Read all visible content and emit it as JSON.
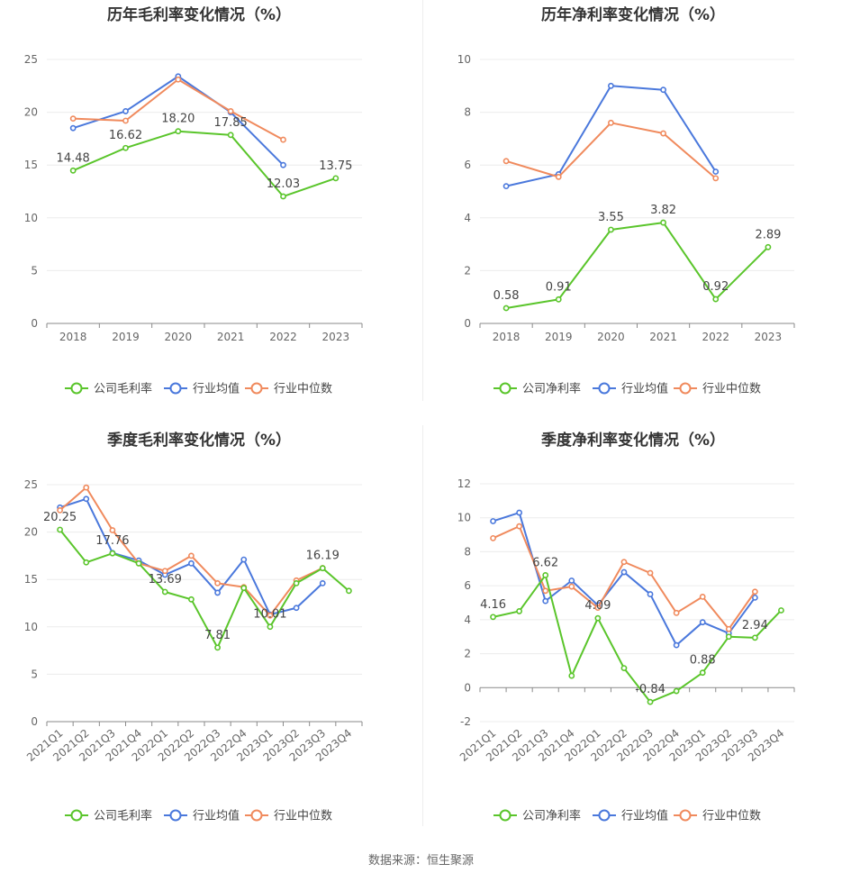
{
  "source_label": "数据来源：恒生聚源",
  "chart_data": [
    {
      "type": "line",
      "title": "历年毛利率变化情况（%）",
      "categories": [
        "2018",
        "2019",
        "2020",
        "2021",
        "2022",
        "2023"
      ],
      "ylim": [
        0,
        25
      ],
      "yticks": [
        0,
        5,
        10,
        15,
        20,
        25
      ],
      "grid": true,
      "legend_position": "bottom",
      "series": [
        {
          "name": "公司毛利率",
          "color": "#5ac52b",
          "values": [
            14.48,
            16.62,
            18.2,
            17.85,
            12.03,
            13.75
          ],
          "show_labels": true
        },
        {
          "name": "行业均值",
          "color": "#4a78dc",
          "values": [
            18.5,
            20.1,
            23.4,
            20.0,
            15.0,
            null
          ],
          "show_labels": false
        },
        {
          "name": "行业中位数",
          "color": "#f08a5d",
          "values": [
            19.4,
            19.2,
            23.1,
            20.1,
            17.4,
            null
          ],
          "show_labels": false
        }
      ],
      "data_labels": [
        "14.48",
        "16.62",
        "18.20",
        "17.85",
        "12.03",
        "13.75"
      ]
    },
    {
      "type": "line",
      "title": "历年净利率变化情况（%）",
      "categories": [
        "2018",
        "2019",
        "2020",
        "2021",
        "2022",
        "2023"
      ],
      "ylim": [
        0,
        10
      ],
      "yticks": [
        0,
        2,
        4,
        6,
        8,
        10
      ],
      "grid": true,
      "legend_position": "bottom",
      "series": [
        {
          "name": "公司净利率",
          "color": "#5ac52b",
          "values": [
            0.58,
            0.91,
            3.55,
            3.82,
            0.92,
            2.89
          ],
          "show_labels": true
        },
        {
          "name": "行业均值",
          "color": "#4a78dc",
          "values": [
            5.2,
            5.65,
            9.0,
            8.85,
            5.75,
            null
          ],
          "show_labels": false
        },
        {
          "name": "行业中位数",
          "color": "#f08a5d",
          "values": [
            6.15,
            5.55,
            7.6,
            7.2,
            5.5,
            null
          ],
          "show_labels": false
        }
      ],
      "data_labels": [
        "0.58",
        "0.91",
        "3.55",
        "3.82",
        "0.92",
        "2.89"
      ]
    },
    {
      "type": "line",
      "title": "季度毛利率变化情况（%）",
      "categories": [
        "2021Q1",
        "2021Q2",
        "2021Q3",
        "2021Q4",
        "2022Q1",
        "2022Q2",
        "2022Q3",
        "2022Q4",
        "2023Q1",
        "2023Q2",
        "2023Q3",
        "2023Q4"
      ],
      "ylim": [
        0,
        25
      ],
      "yticks": [
        0,
        5,
        10,
        15,
        20,
        25
      ],
      "grid": true,
      "legend_position": "bottom",
      "series": [
        {
          "name": "公司毛利率",
          "color": "#5ac52b",
          "values": [
            20.25,
            16.8,
            17.76,
            16.7,
            13.69,
            12.9,
            7.81,
            14.1,
            10.01,
            14.6,
            16.19,
            13.8
          ],
          "show_labels": true
        },
        {
          "name": "行业均值",
          "color": "#4a78dc",
          "values": [
            22.6,
            23.5,
            17.8,
            17.0,
            15.5,
            16.7,
            13.6,
            17.1,
            11.3,
            12.0,
            14.6,
            null
          ],
          "show_labels": false
        },
        {
          "name": "行业中位数",
          "color": "#f08a5d",
          "values": [
            22.3,
            24.7,
            20.2,
            16.7,
            15.9,
            17.5,
            14.6,
            14.2,
            11.2,
            14.9,
            16.2,
            null
          ],
          "show_labels": false
        }
      ],
      "data_labels": [
        "20.25",
        "",
        "17.76",
        "",
        "13.69",
        "",
        "7.81",
        "",
        "10.01",
        "",
        "16.19",
        ""
      ]
    },
    {
      "type": "line",
      "title": "季度净利率变化情况（%）",
      "categories": [
        "2021Q1",
        "2021Q2",
        "2021Q3",
        "2021Q4",
        "2022Q1",
        "2022Q2",
        "2022Q3",
        "2022Q4",
        "2023Q1",
        "2023Q2",
        "2023Q3",
        "2023Q4"
      ],
      "ylim": [
        -2,
        12
      ],
      "yticks": [
        -2,
        0,
        2,
        4,
        6,
        8,
        10,
        12
      ],
      "grid": true,
      "legend_position": "bottom",
      "series": [
        {
          "name": "公司净利率",
          "color": "#5ac52b",
          "values": [
            4.16,
            4.5,
            6.62,
            0.7,
            4.09,
            1.15,
            -0.84,
            -0.2,
            0.88,
            3.0,
            2.94,
            4.55
          ],
          "show_labels": true
        },
        {
          "name": "行业均值",
          "color": "#4a78dc",
          "values": [
            9.8,
            10.3,
            5.1,
            6.3,
            4.85,
            6.8,
            5.5,
            2.5,
            3.85,
            3.2,
            5.3,
            null
          ],
          "show_labels": false
        },
        {
          "name": "行业中位数",
          "color": "#f08a5d",
          "values": [
            8.8,
            9.5,
            5.7,
            5.95,
            4.7,
            7.4,
            6.75,
            4.4,
            5.35,
            3.45,
            5.65,
            null
          ],
          "show_labels": false
        }
      ],
      "data_labels": [
        "4.16",
        "",
        "6.62",
        "",
        "4.09",
        "",
        "-0.84",
        "",
        "0.88",
        "",
        "2.94",
        ""
      ]
    }
  ]
}
